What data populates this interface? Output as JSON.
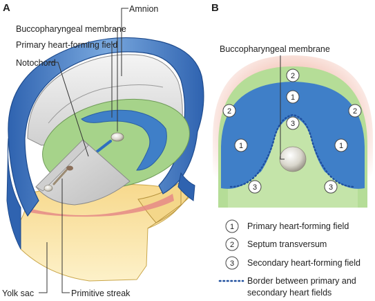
{
  "panels": {
    "a": "A",
    "b": "B"
  },
  "panel_a": {
    "labels": {
      "amnion": "Amnion",
      "buccopharyngeal_membrane": "Buccopharyngeal membrane",
      "primary_heart_field": "Primary heart-forming field",
      "notochord": "Notochord",
      "yolk_sac": "Yolk sac",
      "primitive_streak": "Primitive streak"
    }
  },
  "panel_b": {
    "buccopharyngeal_membrane": "Buccopharyngeal membrane",
    "markers": {
      "primary": "1",
      "septum": "2",
      "secondary": "3"
    }
  },
  "legend": {
    "items": [
      {
        "num": "1",
        "text": "Primary heart-forming field"
      },
      {
        "num": "2",
        "text": "Septum transversum"
      },
      {
        "num": "3",
        "text": "Secondary heart-forming field"
      }
    ],
    "border_line1": "Border between primary and",
    "border_line2": "secondary heart fields"
  },
  "colors": {
    "heart_field_blue": "#3f7fc8",
    "ectoderm_green": "#a6d38a",
    "septum_pink": "#f6c8bd",
    "yolk_sac_yellow": "#fbe8a6",
    "amnion_grey": "#d9d9d9",
    "border_dots": "#1f4f9e"
  }
}
